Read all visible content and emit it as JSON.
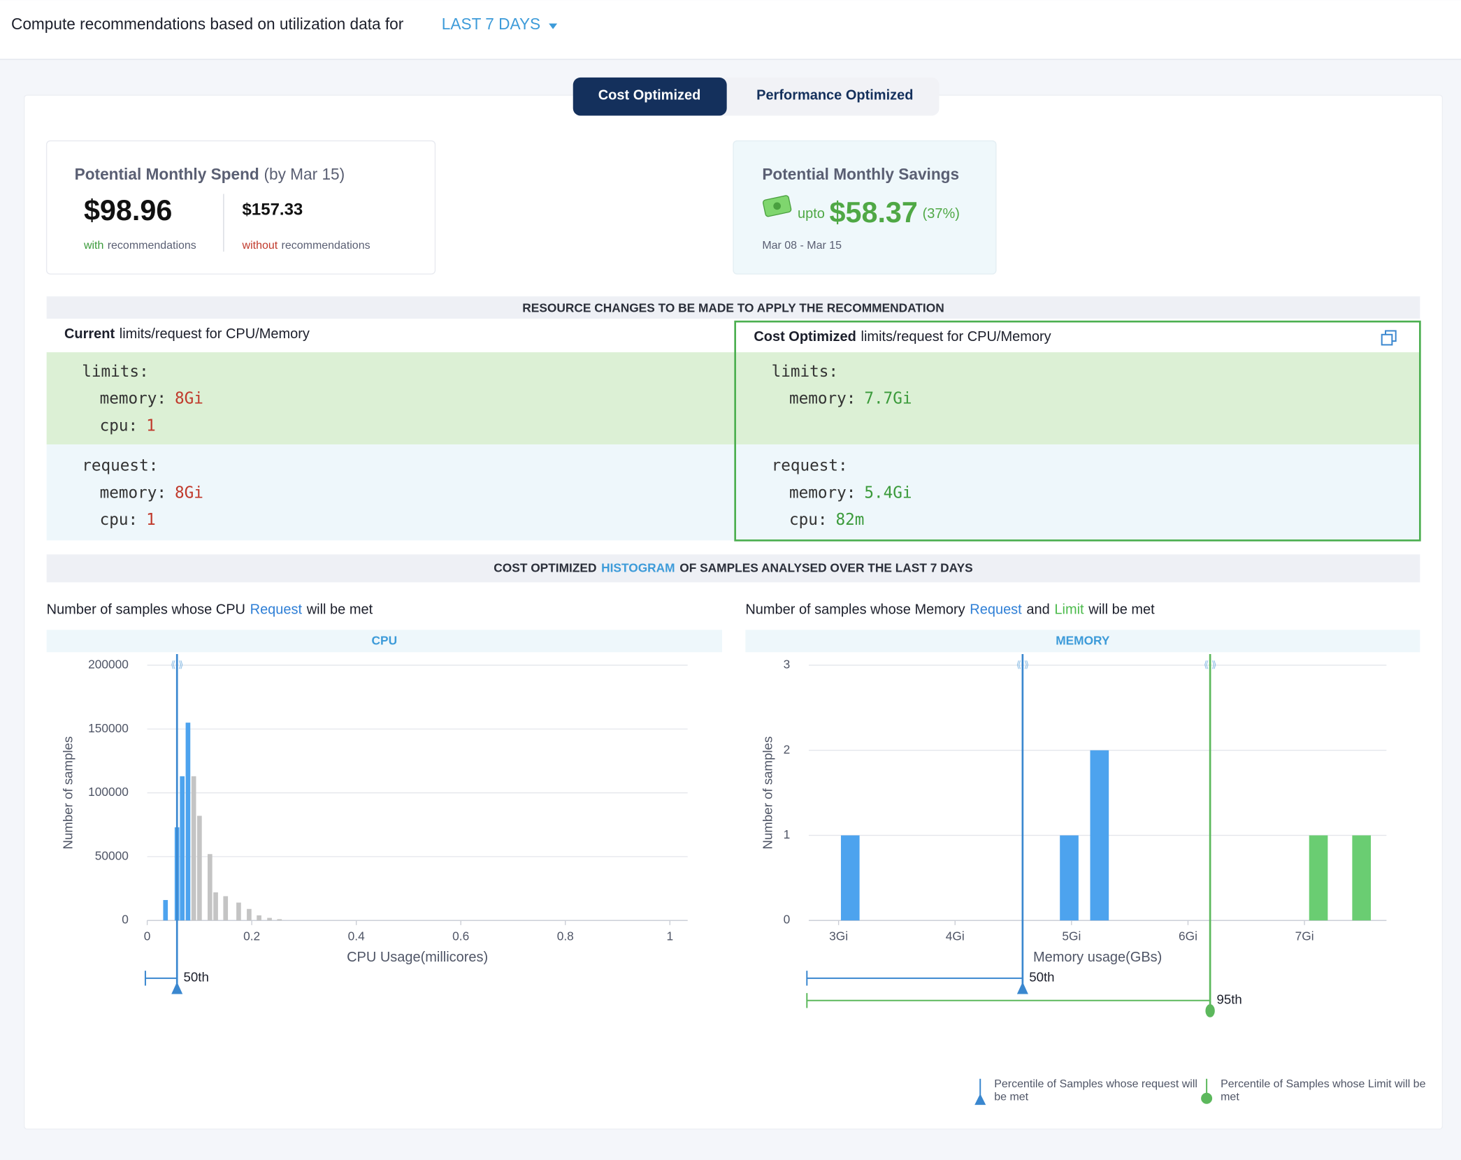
{
  "header": {
    "label": "Compute recommendations based on utilization data for",
    "period": "LAST 7 DAYS"
  },
  "tabs": [
    "Cost Optimized",
    "Performance Optimized"
  ],
  "spend": {
    "title": "Potential Monthly Spend",
    "date": "(by Mar 15)",
    "with": {
      "amount": "$98.96",
      "word": "with",
      "rest": "recommendations"
    },
    "without": {
      "amount": "$157.33",
      "word": "without",
      "rest": "recommendations"
    }
  },
  "savings": {
    "title": "Potential Monthly Savings",
    "prefix": "upto",
    "amount": "$58.37",
    "percent": "(37%)",
    "range": "Mar 08 - Mar 15"
  },
  "changes": {
    "title": "RESOURCE CHANGES TO BE MADE TO APPLY THE RECOMMENDATION",
    "current": {
      "bold": "Current",
      "rest": "limits/request for CPU/Memory",
      "limits": {
        "key": "limits:",
        "rows": [
          [
            "memory:",
            "8Gi"
          ],
          [
            "cpu:",
            "1"
          ]
        ]
      },
      "request": {
        "key": "request:",
        "rows": [
          [
            "memory:",
            "8Gi"
          ],
          [
            "cpu:",
            "1"
          ]
        ]
      }
    },
    "optimized": {
      "bold": "Cost Optimized",
      "rest": "limits/request for CPU/Memory",
      "limits": {
        "key": "limits:",
        "rows": [
          [
            "memory:",
            "7.7Gi"
          ]
        ]
      },
      "request": {
        "key": "request:",
        "rows": [
          [
            "memory:",
            "5.4Gi"
          ],
          [
            "cpu:",
            "82m"
          ]
        ]
      }
    }
  },
  "histogram_section": {
    "title": [
      "COST OPTIMIZED",
      "HISTOGRAM",
      "OF SAMPLES ANALYSED OVER THE LAST 7 DAYS"
    ]
  },
  "chart_data": [
    {
      "type": "bar",
      "title": [
        "Number of samples whose CPU",
        "Request",
        "will be met"
      ],
      "panel": "CPU",
      "x_label": "CPU Usage(millicores)",
      "y_label": "Number of samples",
      "x": [
        0.035,
        0.057,
        0.067,
        0.078,
        0.089,
        0.1,
        0.12,
        0.131,
        0.15,
        0.175,
        0.195,
        0.214,
        0.234,
        0.253
      ],
      "values": [
        16000,
        73000,
        113000,
        155000,
        113000,
        82000,
        52000,
        22000,
        19000,
        14000,
        9000,
        4000,
        2000,
        1000
      ],
      "colors": [
        "#4da3ee",
        "#4da3ee",
        "#4da3ee",
        "#4da3ee",
        "#c4c4c4",
        "#c4c4c4",
        "#c4c4c4",
        "#c4c4c4",
        "#c4c4c4",
        "#c4c4c4",
        "#c4c4c4",
        "#c4c4c4",
        "#c4c4c4",
        "#c4c4c4"
      ],
      "xlim": [
        0,
        1.034
      ],
      "xticks": [
        0,
        0.2,
        0.4,
        0.6,
        0.8,
        1
      ],
      "ylim": [
        0,
        200000
      ],
      "yticks": [
        0,
        50000,
        100000,
        150000,
        200000
      ],
      "grid": true,
      "percentiles": [
        {
          "label": "50th",
          "value": 0.057,
          "color": "#3a87cf",
          "marker": "triangle"
        }
      ]
    },
    {
      "type": "bar",
      "title": [
        "Number of samples whose Memory",
        "Request",
        "and",
        "Limit",
        "will be met"
      ],
      "panel": "MEMORY",
      "x_label": "Memory usage(GBs)",
      "y_label": "Number of samples",
      "x": [
        3.1,
        4.98,
        5.24,
        7.12,
        7.49
      ],
      "values": [
        1,
        1,
        2,
        1,
        1
      ],
      "colors": [
        "#4da3ee",
        "#4da3ee",
        "#4da3ee",
        "#6acd72",
        "#6acd72"
      ],
      "xlim": [
        2.744,
        7.704
      ],
      "xticks": [
        {
          "value": 3,
          "label": "3Gi"
        },
        {
          "value": 4,
          "label": "4Gi"
        },
        {
          "value": 5,
          "label": "5Gi"
        },
        {
          "value": 6,
          "label": "6Gi"
        },
        {
          "value": 7,
          "label": "7Gi"
        }
      ],
      "ylim": [
        0,
        3
      ],
      "yticks": [
        0,
        1,
        2,
        3
      ],
      "grid": true,
      "percentiles": [
        {
          "label": "50th",
          "value": 4.58,
          "color": "#3a87cf",
          "marker": "triangle"
        },
        {
          "label": "95th",
          "value": 6.19,
          "color": "#5cb85c",
          "marker": "circle"
        }
      ]
    }
  ],
  "legend": [
    "Percentile of Samples whose request will be met",
    "Percentile of Samples whose Limit will be met"
  ]
}
